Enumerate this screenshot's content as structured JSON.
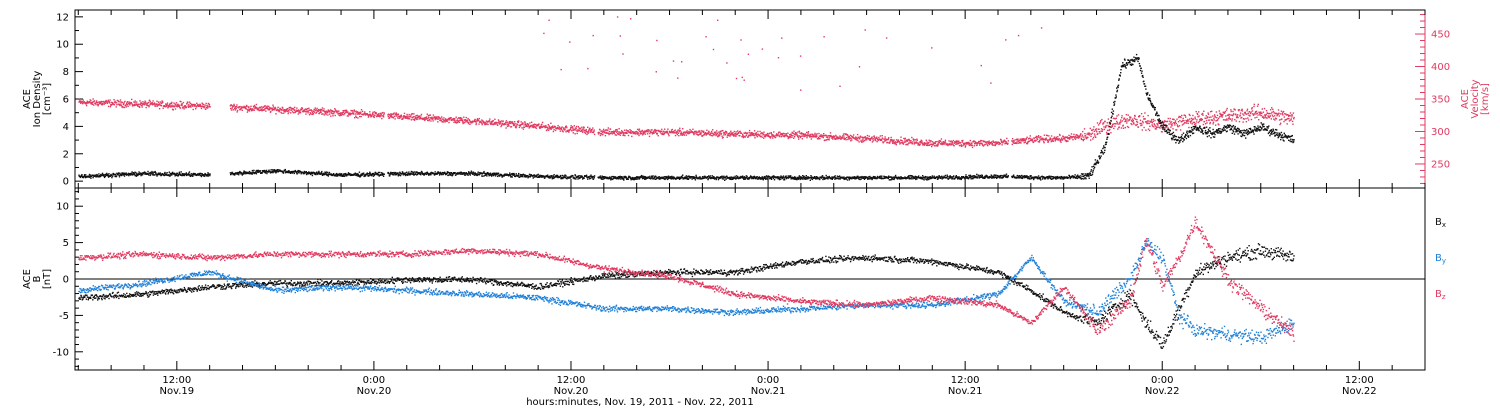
{
  "colors": {
    "black": "#111111",
    "pink": "#e03a60",
    "blue": "#1f80d8"
  },
  "xaxis": {
    "title": "hours:minutes, Nov. 19, 2011 - Nov. 22, 2011",
    "ticks": [
      {
        "hour": 12,
        "time": "12:00",
        "date": "Nov.19"
      },
      {
        "hour": 24,
        "time": "0:00",
        "date": "Nov.20"
      },
      {
        "hour": 36,
        "time": "12:00",
        "date": "Nov.20"
      },
      {
        "hour": 48,
        "time": "0:00",
        "date": "Nov.21"
      },
      {
        "hour": 60,
        "time": "12:00",
        "date": "Nov.21"
      },
      {
        "hour": 72,
        "time": "0:00",
        "date": "Nov.22"
      },
      {
        "hour": 84,
        "time": "12:00",
        "date": "Nov.22"
      }
    ],
    "range_hours": [
      5.8,
      88.0
    ]
  },
  "chart_data": [
    {
      "type": "scatter",
      "panel": "top",
      "ylabel_lines": [
        "ACE",
        "Ion Density",
        "[cm⁻³]"
      ],
      "ylim": [
        -0.5,
        12.5
      ],
      "yticks": [
        0,
        2,
        4,
        6,
        8,
        10,
        12
      ],
      "y2label_lines": [
        "ACE",
        "Velocity",
        "[km/s]"
      ],
      "y2lim": [
        213,
        487
      ],
      "y2ticks": [
        250,
        300,
        350,
        400,
        450
      ],
      "series": [
        {
          "axis": "left",
          "color": "pink_density_black",
          "style": "black",
          "gaps": [
            [
              14.0,
              15.2
            ],
            [
              24.6,
              24.8
            ],
            [
              37.4,
              37.6
            ],
            [
              62.6,
              62.8
            ]
          ],
          "x": [
            6,
            10,
            14,
            18,
            22,
            26,
            30,
            34,
            38,
            42,
            46,
            50,
            54,
            58,
            62,
            65,
            66,
            67.5,
            68.5,
            69.5,
            70.5,
            71,
            72,
            73,
            74,
            75,
            76,
            77,
            78,
            79,
            80
          ],
          "y": [
            0.4,
            0.6,
            0.5,
            0.8,
            0.5,
            0.6,
            0.6,
            0.4,
            0.3,
            0.3,
            0.3,
            0.3,
            0.3,
            0.3,
            0.4,
            0.3,
            0.3,
            0.4,
            2.5,
            8.5,
            9.0,
            6.5,
            4.0,
            3.0,
            4.0,
            3.5,
            4.0,
            3.5,
            4.0,
            3.5,
            3.0
          ]
        },
        {
          "axis": "right",
          "style": "pink",
          "gaps": [
            [
              14.0,
              15.2
            ],
            [
              24.6,
              24.8
            ],
            [
              37.4,
              37.6
            ],
            [
              62.6,
              62.8
            ]
          ],
          "x": [
            6,
            10,
            14,
            18,
            22,
            26,
            30,
            34,
            38,
            42,
            46,
            50,
            54,
            58,
            62,
            65,
            66,
            67.5,
            68.5,
            70,
            71,
            72,
            74,
            76,
            78,
            80
          ],
          "y": [
            346,
            343,
            340,
            335,
            330,
            323,
            317,
            309,
            300,
            300,
            297,
            295,
            290,
            283,
            283,
            290,
            290,
            295,
            310,
            320,
            315,
            310,
            320,
            325,
            330,
            320
          ]
        }
      ]
    },
    {
      "type": "scatter",
      "panel": "bottom",
      "ylabel_lines": [
        "ACE",
        "B",
        "[nT]"
      ],
      "ylim": [
        -12.5,
        12.5
      ],
      "yticks": [
        -10,
        -5,
        0,
        5,
        10
      ],
      "series": [
        {
          "name": "Bx",
          "style": "black",
          "x": [
            6,
            10,
            14,
            18,
            22,
            26,
            30,
            34,
            38,
            42,
            46,
            50,
            54,
            58,
            62,
            64,
            66,
            68,
            70,
            71,
            72,
            73,
            74,
            76,
            78,
            80
          ],
          "y": [
            -2.5,
            -2.0,
            -1.0,
            -0.5,
            -0.5,
            0.0,
            0.0,
            -1.0,
            0.5,
            1.0,
            1.0,
            2.5,
            3.0,
            2.5,
            1.0,
            -1.5,
            -4.5,
            -6.0,
            -2.0,
            -6.0,
            -9.0,
            -4.0,
            1.0,
            3.0,
            4.0,
            3.0
          ]
        },
        {
          "name": "By",
          "style": "blue",
          "x": [
            6,
            10,
            14,
            18,
            22,
            26,
            30,
            34,
            38,
            42,
            46,
            50,
            54,
            58,
            62,
            64,
            66,
            68,
            70,
            71,
            72,
            73,
            74,
            76,
            78,
            80
          ],
          "y": [
            -1.5,
            -0.5,
            1.0,
            -1.5,
            -1.0,
            -1.5,
            -2.0,
            -2.5,
            -4.0,
            -4.0,
            -4.5,
            -4.0,
            -3.5,
            -3.5,
            -2.0,
            3.0,
            -3.0,
            -4.5,
            0.0,
            5.0,
            3.0,
            -5.0,
            -7.0,
            -7.5,
            -8.0,
            -6.0
          ]
        },
        {
          "name": "Bz",
          "style": "pink",
          "x": [
            6,
            10,
            14,
            18,
            22,
            26,
            30,
            34,
            38,
            42,
            46,
            50,
            54,
            58,
            62,
            64,
            66,
            68,
            70,
            71,
            72,
            73,
            74,
            76,
            78,
            80
          ],
          "y": [
            3.0,
            3.5,
            3.0,
            3.5,
            3.5,
            3.5,
            4.0,
            3.5,
            1.5,
            0.5,
            -2.0,
            -3.0,
            -3.5,
            -2.5,
            -3.5,
            -6.0,
            -1.0,
            -7.0,
            -3.0,
            5.5,
            -1.0,
            3.0,
            8.0,
            0.0,
            -4.0,
            -7.5
          ]
        }
      ],
      "legend": [
        "Bx",
        "By",
        "Bz"
      ]
    }
  ]
}
